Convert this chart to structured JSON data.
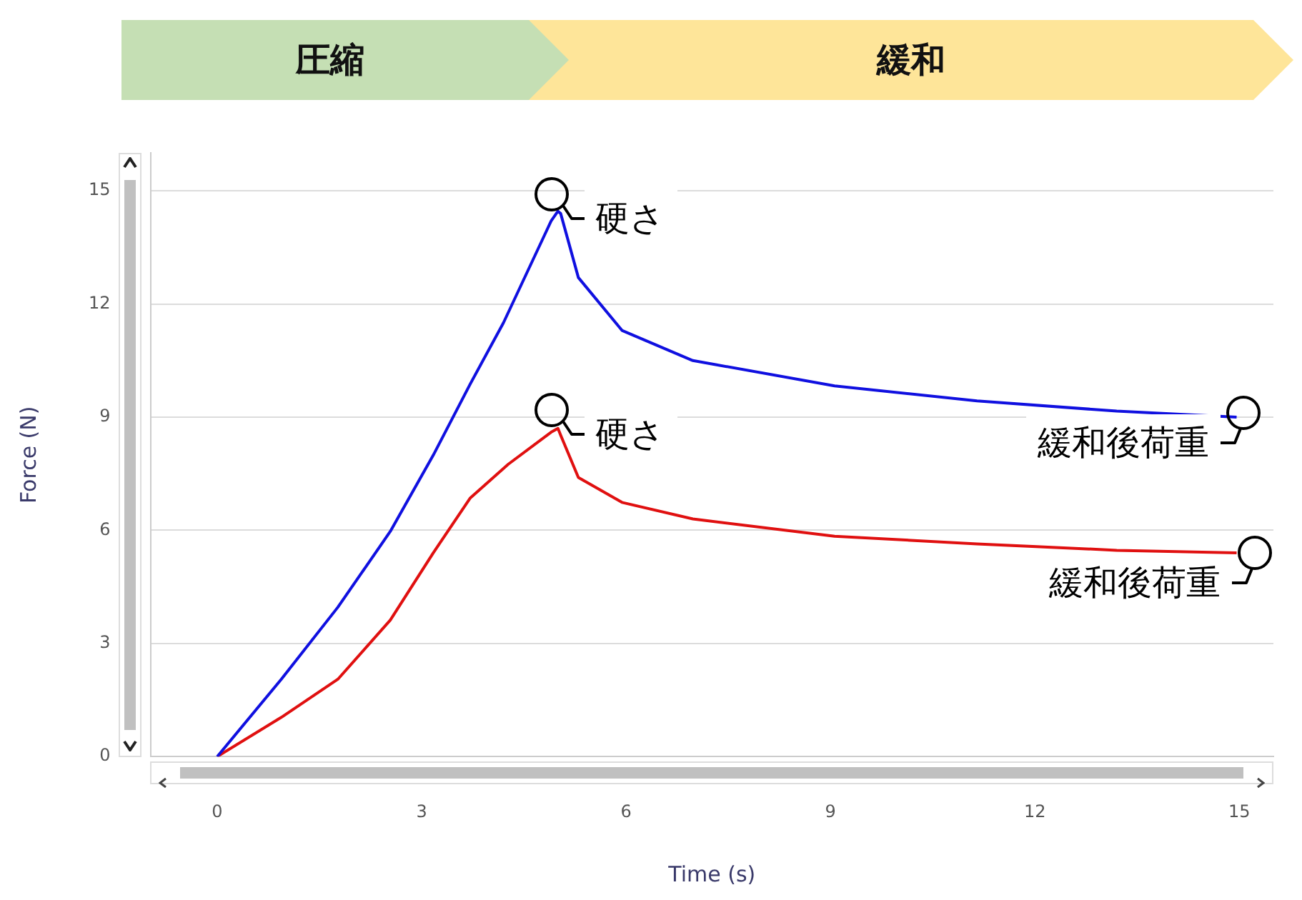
{
  "chart_data": {
    "type": "line",
    "xlabel": "Time (s)",
    "ylabel": "Force (N)",
    "xlim": [
      -0.98,
      15.5
    ],
    "xticks": [
      0,
      3,
      6,
      9,
      12,
      15
    ],
    "ylim": [
      0,
      16
    ],
    "yticks": [
      0,
      3,
      6,
      9,
      12,
      15
    ],
    "grid": "y",
    "legend": false,
    "marker": "none",
    "line_style": "solid",
    "series": [
      {
        "color": "#1010e0",
        "x": [
          0,
          0.94,
          1.77,
          2.54,
          3.17,
          3.71,
          4.2,
          4.9,
          5.0,
          5.04,
          5.3,
          5.94,
          6.98,
          9.06,
          11.15,
          13.2,
          14.96
        ],
        "values": [
          0,
          2.05,
          3.96,
          5.97,
          7.99,
          9.87,
          11.5,
          14.2,
          14.46,
          14.4,
          12.7,
          11.3,
          10.5,
          9.83,
          9.43,
          9.16,
          9.0
        ]
      },
      {
        "color": "#e01010",
        "x": [
          0,
          0.94,
          1.77,
          2.54,
          3.17,
          3.71,
          4.27,
          4.9,
          5.0,
          5.04,
          5.3,
          5.94,
          6.98,
          9.06,
          11.15,
          13.2,
          14.96
        ],
        "values": [
          0,
          1.04,
          2.05,
          3.62,
          5.4,
          6.85,
          7.75,
          8.6,
          8.7,
          8.52,
          7.4,
          6.74,
          6.3,
          5.84,
          5.64,
          5.47,
          5.4
        ]
      }
    ],
    "annotations": [
      "圧縮",
      "緩和",
      {
        "text": "硬さ",
        "x": 4.9,
        "y": 14.9
      },
      {
        "text": "硬さ",
        "x": 4.9,
        "y": 9.2
      },
      {
        "text": "緩和後荷重",
        "x": 15.06,
        "y": 9.1
      },
      {
        "text": "緩和後荷重",
        "x": 15.23,
        "y": 5.4
      }
    ]
  }
}
